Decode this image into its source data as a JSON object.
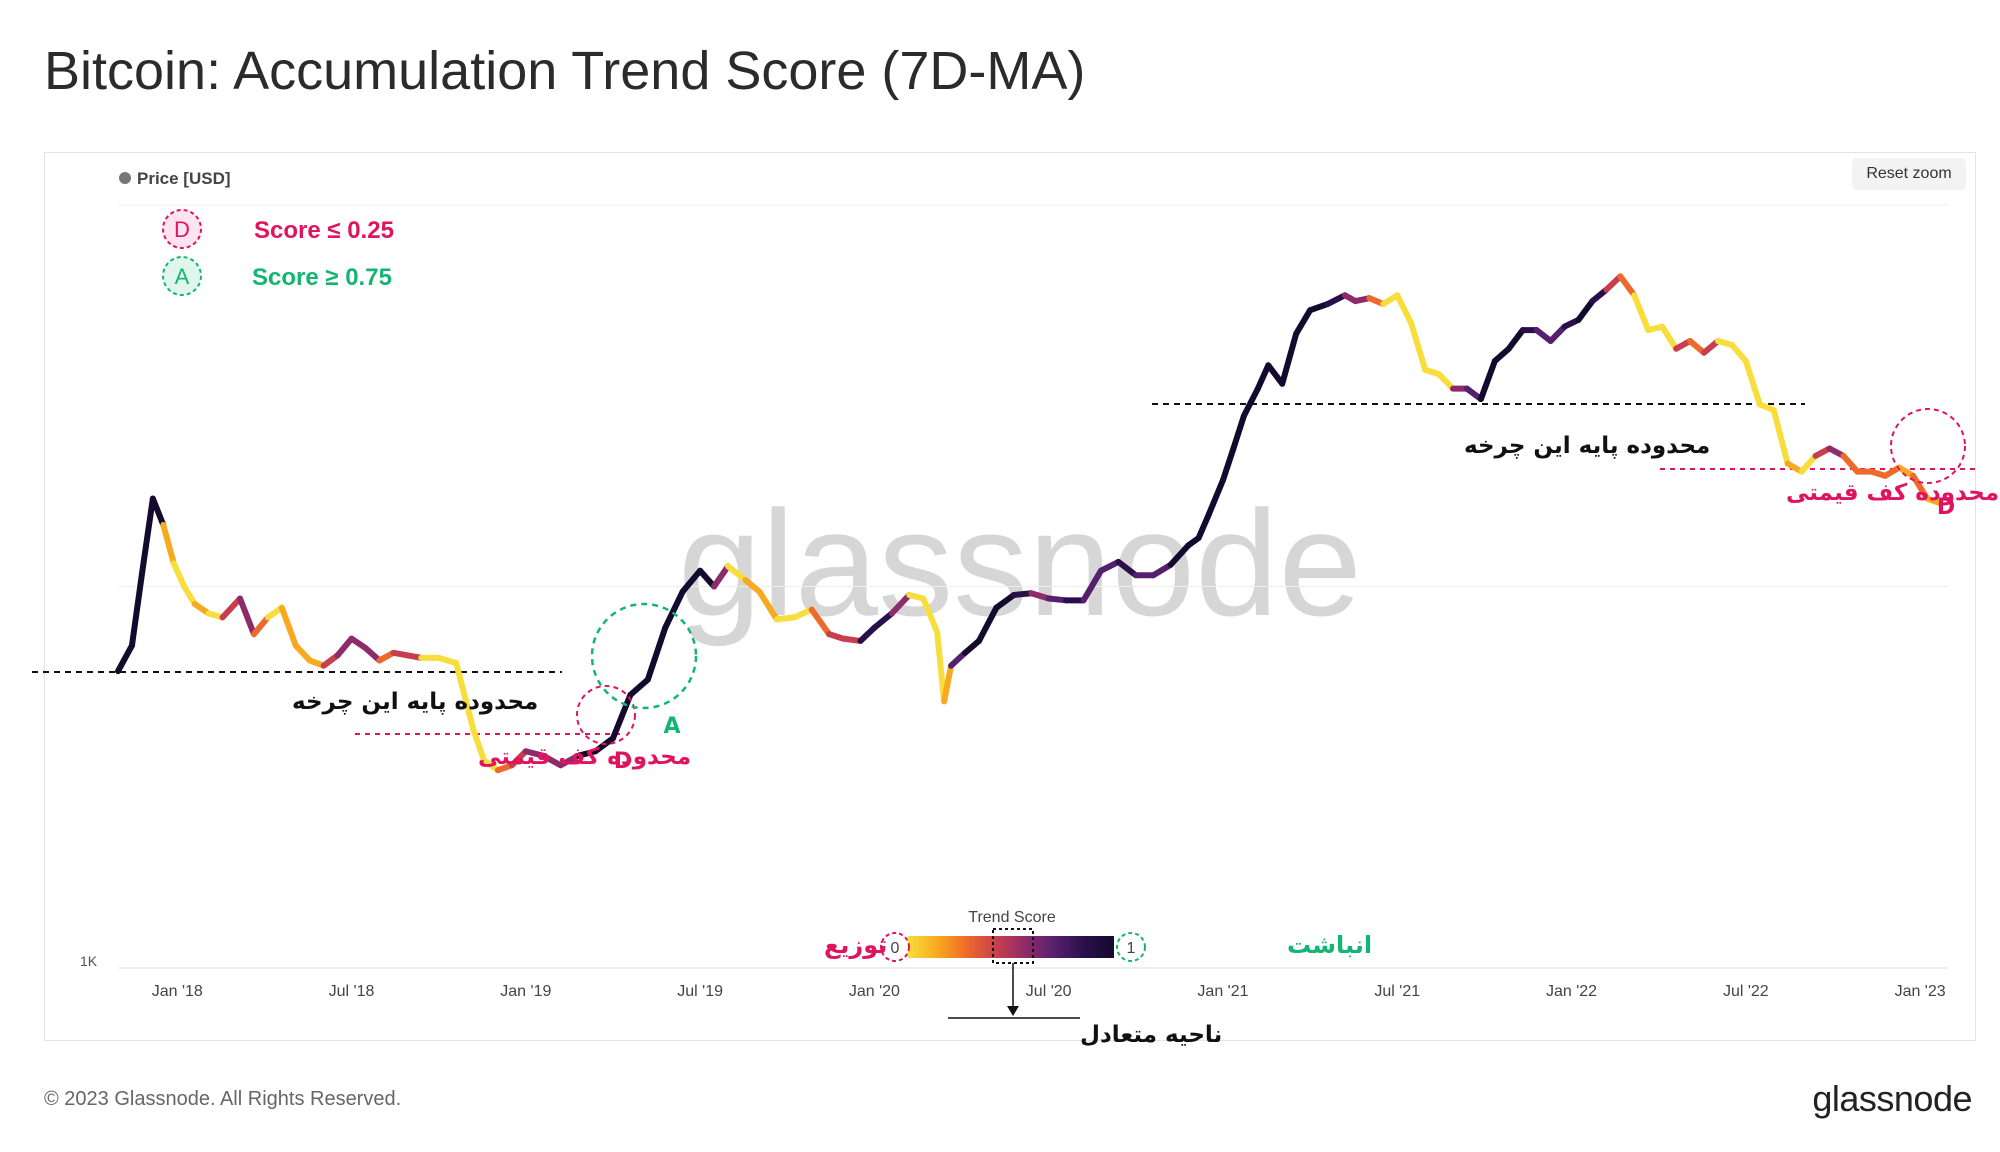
{
  "header": {
    "title": "Bitcoin: Accumulation Trend Score (7D-MA)"
  },
  "toolbar": {
    "reset_zoom_label": "Reset zoom"
  },
  "footer": {
    "copyright": "© 2023 Glassnode. All Rights Reserved.",
    "brand": "glassnode"
  },
  "watermark": "glassnode",
  "legend": {
    "series_label": "Price [USD]",
    "series_color": "#777777",
    "d_badge": "D",
    "d_text": "Score ≤ 0.25",
    "a_badge": "A",
    "a_text": "Score ≥ 0.75"
  },
  "colors": {
    "distribution": "#e0135f",
    "accumulation": "#14b574",
    "baseline": "#111111"
  },
  "colorbar": {
    "title": "Trend Score",
    "min_label": "0",
    "max_label": "1",
    "left_caption": "توزیع",
    "right_caption": "انباشت",
    "equilibrium_caption": "ناحیه متعادل",
    "gradient": [
      "#f7de3c",
      "#f7a91f",
      "#ee6a2a",
      "#c73f4e",
      "#8e2b6a",
      "#55206e",
      "#2a0f4a",
      "#140a2e"
    ]
  },
  "annotations": {
    "cycle_base_1": "محدوده پایه این چرخه",
    "price_floor_1": "محدوده کف قیمتی",
    "cycle_base_2": "محدوده پایه این چرخه",
    "price_floor_2": "محدوده کف قیمتی",
    "marker_d": "D",
    "marker_a": "A"
  },
  "chart_data": {
    "type": "line",
    "y_scale": "log",
    "y_tick_labels": [
      "1K"
    ],
    "x_tick_labels": [
      "Jan '18",
      "Jul '18",
      "Jan '19",
      "Jul '19",
      "Jan '20",
      "Jul '20",
      "Jan '21",
      "Jul '21",
      "Jan '22",
      "Jul '22",
      "Jan '23"
    ],
    "x_range": [
      2017.83,
      2023.08
    ],
    "y_range": [
      1000,
      100000
    ],
    "series": [
      {
        "name": "Price [USD]",
        "x": [
          2017.83,
          2017.87,
          2017.9,
          2017.93,
          2017.96,
          2017.99,
          2018.02,
          2018.05,
          2018.09,
          2018.13,
          2018.18,
          2018.22,
          2018.26,
          2018.3,
          2018.34,
          2018.38,
          2018.42,
          2018.46,
          2018.5,
          2018.54,
          2018.58,
          2018.62,
          2018.66,
          2018.7,
          2018.75,
          2018.8,
          2018.85,
          2018.88,
          2018.92,
          2018.96,
          2019.0,
          2019.05,
          2019.1,
          2019.15,
          2019.2,
          2019.25,
          2019.3,
          2019.35,
          2019.4,
          2019.45,
          2019.5,
          2019.54,
          2019.58,
          2019.63,
          2019.67,
          2019.72,
          2019.77,
          2019.82,
          2019.87,
          2019.91,
          2019.96,
          2020.0,
          2020.05,
          2020.1,
          2020.14,
          2020.18,
          2020.2,
          2020.22,
          2020.26,
          2020.3,
          2020.35,
          2020.4,
          2020.45,
          2020.5,
          2020.55,
          2020.6,
          2020.65,
          2020.7,
          2020.75,
          2020.8,
          2020.85,
          2020.9,
          2020.93,
          2020.96,
          2021.0,
          2021.03,
          2021.06,
          2021.1,
          2021.13,
          2021.17,
          2021.21,
          2021.25,
          2021.3,
          2021.35,
          2021.38,
          2021.42,
          2021.46,
          2021.5,
          2021.54,
          2021.58,
          2021.62,
          2021.66,
          2021.7,
          2021.74,
          2021.78,
          2021.82,
          2021.86,
          2021.9,
          2021.94,
          2021.98,
          2022.02,
          2022.06,
          2022.1,
          2022.14,
          2022.18,
          2022.22,
          2022.26,
          2022.3,
          2022.34,
          2022.38,
          2022.42,
          2022.46,
          2022.5,
          2022.54,
          2022.58,
          2022.62,
          2022.66,
          2022.7,
          2022.74,
          2022.78,
          2022.82,
          2022.86,
          2022.9,
          2022.94,
          2022.98,
          2023.02,
          2023.06
        ],
        "y": [
          6000,
          7000,
          11000,
          17000,
          14500,
          11500,
          10000,
          9000,
          8500,
          8300,
          9300,
          7500,
          8300,
          8800,
          7000,
          6400,
          6200,
          6600,
          7300,
          6900,
          6400,
          6700,
          6600,
          6500,
          6500,
          6300,
          4200,
          3500,
          3300,
          3400,
          3700,
          3600,
          3400,
          3600,
          3700,
          4000,
          5200,
          5700,
          7800,
          9700,
          11000,
          10000,
          11300,
          10400,
          9700,
          8200,
          8300,
          8700,
          7500,
          7300,
          7200,
          7800,
          8500,
          9500,
          9300,
          7600,
          5000,
          6200,
          6700,
          7200,
          8800,
          9500,
          9600,
          9300,
          9200,
          9200,
          11000,
          11600,
          10700,
          10700,
          11400,
          12800,
          13400,
          15500,
          19000,
          23000,
          28000,
          33000,
          38000,
          34000,
          46000,
          53000,
          55000,
          58000,
          56000,
          57000,
          55000,
          58000,
          49000,
          37000,
          36000,
          33000,
          33000,
          31000,
          39000,
          42000,
          47000,
          47000,
          44000,
          48000,
          50000,
          56000,
          60000,
          65000,
          58000,
          47000,
          48000,
          42000,
          44000,
          41000,
          44000,
          43000,
          39000,
          30000,
          29000,
          21000,
          20000,
          22000,
          23000,
          22000,
          20000,
          20000,
          19500,
          20500,
          19500,
          17000,
          16500
        ]
      }
    ]
  }
}
